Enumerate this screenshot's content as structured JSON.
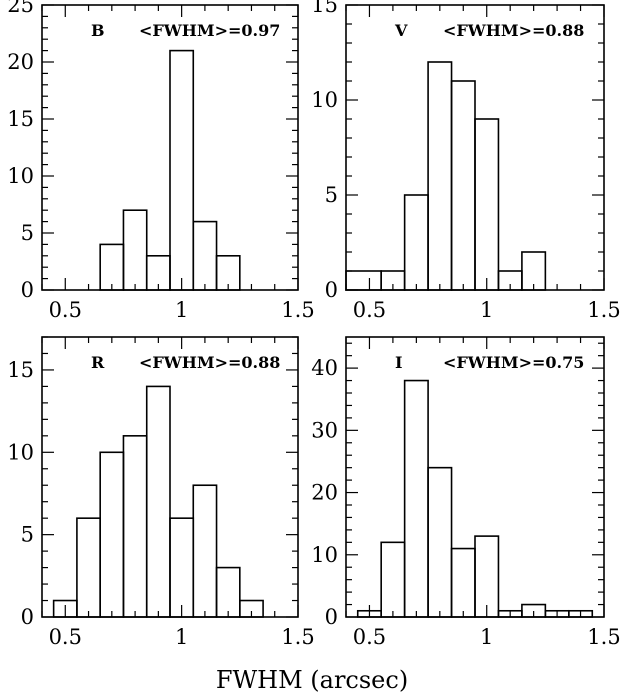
{
  "figure": {
    "xlabel": "FWHM (arcsec)",
    "xticks": [
      0.5,
      1,
      1.5
    ],
    "xtick_labels": [
      "0.5",
      "1",
      "1.5"
    ],
    "xlim": [
      0.4,
      1.5
    ],
    "bin_edges": [
      0.45,
      0.55,
      0.65,
      0.75,
      0.85,
      0.95,
      1.05,
      1.15,
      1.25,
      1.35,
      1.45
    ]
  },
  "chart_data": [
    {
      "type": "histogram",
      "panel": "B",
      "annotation": "<FWHM>=0.97",
      "xlim": [
        0.4,
        1.5
      ],
      "ylim": [
        0,
        25
      ],
      "yticks": [
        0,
        5,
        10,
        15,
        20,
        25
      ],
      "bins": [
        {
          "from": 0.65,
          "to": 0.75,
          "count": 4
        },
        {
          "from": 0.75,
          "to": 0.85,
          "count": 7
        },
        {
          "from": 0.85,
          "to": 0.95,
          "count": 3
        },
        {
          "from": 0.95,
          "to": 1.05,
          "count": 21
        },
        {
          "from": 1.05,
          "to": 1.15,
          "count": 6
        },
        {
          "from": 1.15,
          "to": 1.25,
          "count": 3
        }
      ]
    },
    {
      "type": "histogram",
      "panel": "V",
      "annotation": "<FWHM>=0.88",
      "xlim": [
        0.4,
        1.5
      ],
      "ylim": [
        0,
        15
      ],
      "yticks": [
        0,
        5,
        10,
        15
      ],
      "bins": [
        {
          "from": 0.4,
          "to": 0.55,
          "count": 1
        },
        {
          "from": 0.55,
          "to": 0.65,
          "count": 1
        },
        {
          "from": 0.65,
          "to": 0.75,
          "count": 5
        },
        {
          "from": 0.75,
          "to": 0.85,
          "count": 12
        },
        {
          "from": 0.85,
          "to": 0.95,
          "count": 11
        },
        {
          "from": 0.95,
          "to": 1.05,
          "count": 9
        },
        {
          "from": 1.05,
          "to": 1.15,
          "count": 1
        },
        {
          "from": 1.15,
          "to": 1.25,
          "count": 2
        }
      ]
    },
    {
      "type": "histogram",
      "panel": "R",
      "annotation": "<FWHM>=0.88",
      "xlim": [
        0.4,
        1.5
      ],
      "ylim": [
        0,
        17
      ],
      "yticks": [
        0,
        5,
        10,
        15
      ],
      "bins": [
        {
          "from": 0.45,
          "to": 0.55,
          "count": 1
        },
        {
          "from": 0.55,
          "to": 0.65,
          "count": 6
        },
        {
          "from": 0.65,
          "to": 0.75,
          "count": 10
        },
        {
          "from": 0.75,
          "to": 0.85,
          "count": 11
        },
        {
          "from": 0.85,
          "to": 0.95,
          "count": 14
        },
        {
          "from": 0.95,
          "to": 1.05,
          "count": 6
        },
        {
          "from": 1.05,
          "to": 1.15,
          "count": 8
        },
        {
          "from": 1.15,
          "to": 1.25,
          "count": 3
        },
        {
          "from": 1.25,
          "to": 1.35,
          "count": 1
        }
      ]
    },
    {
      "type": "histogram",
      "panel": "I",
      "annotation": "<FWHM>=0.75",
      "xlim": [
        0.4,
        1.5
      ],
      "ylim": [
        0,
        45
      ],
      "yticks": [
        0,
        10,
        20,
        30,
        40
      ],
      "bins": [
        {
          "from": 0.45,
          "to": 0.55,
          "count": 1
        },
        {
          "from": 0.55,
          "to": 0.65,
          "count": 12
        },
        {
          "from": 0.65,
          "to": 0.75,
          "count": 38
        },
        {
          "from": 0.75,
          "to": 0.85,
          "count": 24
        },
        {
          "from": 0.85,
          "to": 0.95,
          "count": 11
        },
        {
          "from": 0.95,
          "to": 1.05,
          "count": 13
        },
        {
          "from": 1.05,
          "to": 1.15,
          "count": 1
        },
        {
          "from": 1.15,
          "to": 1.25,
          "count": 2
        },
        {
          "from": 1.25,
          "to": 1.35,
          "count": 1
        },
        {
          "from": 1.35,
          "to": 1.45,
          "count": 1
        }
      ]
    }
  ]
}
